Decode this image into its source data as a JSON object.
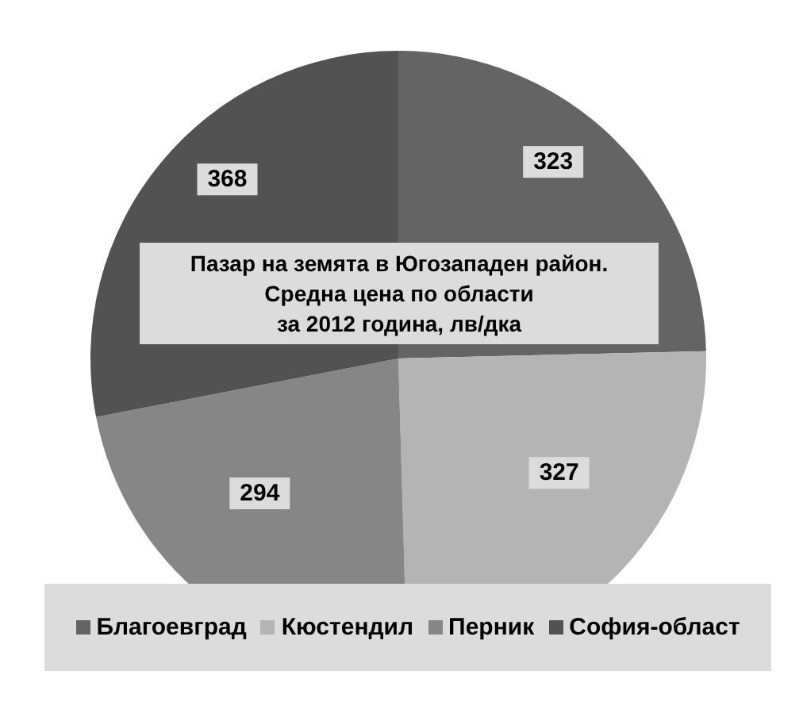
{
  "chart_data": {
    "type": "pie",
    "title": "Пазар на земята в Югозападен район.\nСредна цена по области\nза 2012 година, лв/дка",
    "categories": [
      "Благоевград",
      "Кюстендил",
      "Перник",
      "София-област"
    ],
    "values": [
      323,
      327,
      294,
      368
    ],
    "colors": [
      "#646464",
      "#b4b4b4",
      "#868686",
      "#525252"
    ],
    "data_labels": true,
    "legend": "bottom"
  }
}
